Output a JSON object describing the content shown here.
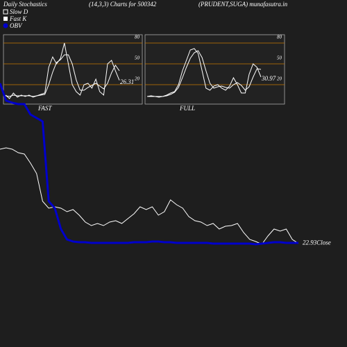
{
  "header": {
    "title": "Daily Stochastics",
    "subtitle": "(14,3,3) Charts for 500342",
    "source": "(PRUDENT,SUGA) munafasutra.in"
  },
  "chart_data": [
    {
      "type": "line",
      "title": "FAST",
      "ylim": [
        -8,
        92
      ],
      "yticks": [
        20,
        50,
        80
      ],
      "series": [
        {
          "name": "Slow D",
          "color": "#ffffff",
          "values": [
            4,
            3,
            5,
            4,
            4,
            4,
            4,
            3,
            4,
            5,
            6,
            20,
            38,
            52,
            56,
            63,
            63,
            50,
            27,
            12,
            12,
            16,
            19,
            22,
            18,
            14,
            22,
            37,
            48,
            40
          ]
        },
        {
          "name": "Fast K",
          "color": "#ffffff",
          "values": [
            5,
            0,
            8,
            2,
            5,
            3,
            5,
            2,
            4,
            6,
            8,
            45,
            60,
            50,
            58,
            80,
            50,
            20,
            10,
            5,
            20,
            22,
            15,
            28,
            10,
            5,
            50,
            55,
            40,
            26.31
          ]
        }
      ]
    },
    {
      "type": "line",
      "title": "FULL",
      "ylim": [
        -8,
        92
      ],
      "yticks": [
        20,
        50,
        80
      ],
      "series": [
        {
          "color": "#ffffff",
          "values": [
            3,
            3,
            3,
            3,
            3,
            4,
            6,
            9,
            16,
            30,
            45,
            58,
            66,
            69,
            59,
            40,
            22,
            15,
            17,
            18,
            16,
            15,
            20,
            23,
            19,
            12,
            17,
            31,
            43,
            42
          ]
        },
        {
          "color": "#ffffff",
          "values": [
            3,
            4,
            3,
            2,
            3,
            5,
            8,
            10,
            20,
            40,
            55,
            70,
            72,
            65,
            40,
            15,
            12,
            18,
            20,
            15,
            12,
            18,
            30,
            20,
            8,
            8,
            35,
            50,
            45,
            30.97
          ]
        }
      ]
    },
    {
      "type": "line",
      "ylim": [
        8,
        58
      ],
      "y2lim": [
        0,
        100
      ],
      "series": [
        {
          "name": "Close",
          "color": "#ffffff",
          "values": [
            36.5,
            36.7,
            36.5,
            36,
            35.8,
            34.5,
            33,
            29,
            28,
            28.2,
            28,
            27.5,
            27.8,
            27,
            26,
            25.5,
            25.8,
            25.5,
            26,
            26.2,
            25.8,
            26.5,
            27.2,
            28.2,
            27.8,
            28.2,
            27,
            27.5,
            29.2,
            28.5,
            28,
            26.8,
            26.2,
            26,
            25.5,
            25.8,
            25,
            25.4,
            25.5,
            25.8,
            24.5,
            23.5,
            23.2,
            22.8,
            24,
            25,
            24.7,
            25,
            23.5,
            22.93
          ]
        },
        {
          "name": "OBV",
          "color": "#0000cc",
          "axis": "y2",
          "values": [
            76,
            71,
            70.4,
            70,
            70,
            67,
            66,
            65,
            42,
            40,
            34,
            31,
            30.4,
            30.2,
            30.2,
            30,
            30,
            30,
            30,
            30,
            30,
            30,
            30.2,
            30.2,
            30.2,
            30.4,
            30.4,
            30.2,
            30.2,
            30,
            30,
            30,
            30,
            30,
            30,
            29.8,
            29.8,
            29.8,
            29.8,
            29.8,
            29.8,
            29.8,
            29.6,
            29.8,
            30,
            30.2,
            30.2,
            30,
            30,
            30
          ]
        }
      ]
    }
  ]
}
